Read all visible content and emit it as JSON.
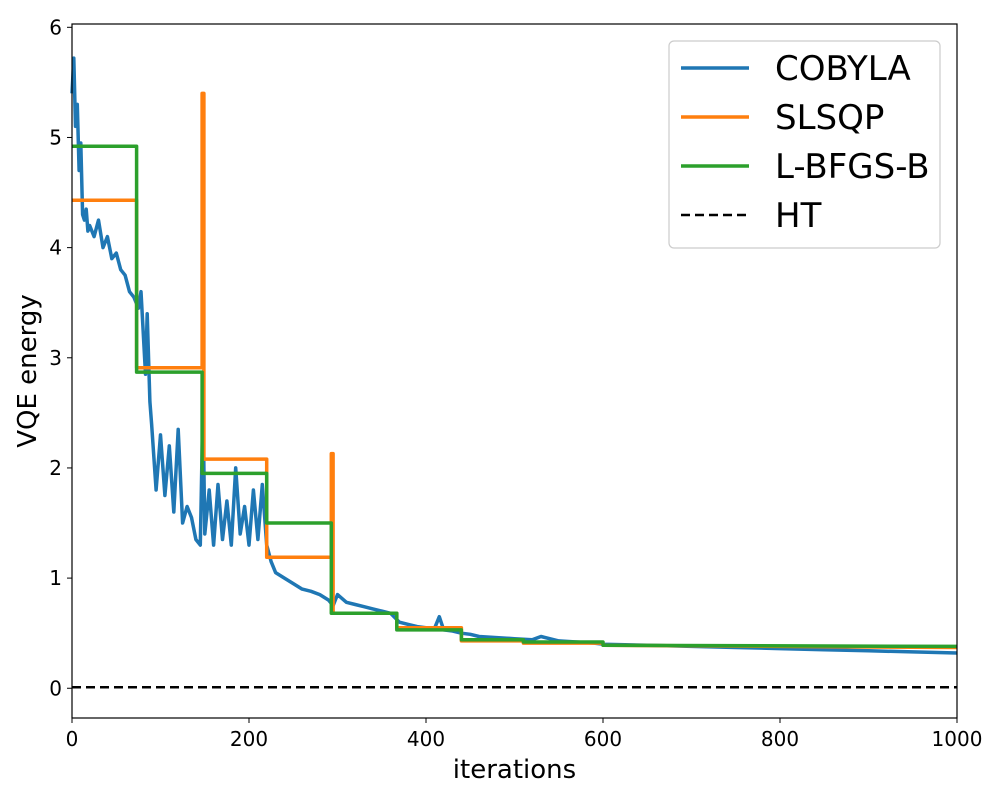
{
  "chart_data": {
    "type": "line",
    "title": "",
    "xlabel": "iterations",
    "ylabel": "VQE energy",
    "xlim": [
      0,
      1000
    ],
    "ylim": [
      -0.27,
      6.03
    ],
    "xticks": [
      0,
      200,
      400,
      600,
      800,
      1000
    ],
    "yticks": [
      0,
      1,
      2,
      3,
      4,
      5,
      6
    ],
    "grid": false,
    "legend_position": "top-right",
    "series": [
      {
        "name": "COBYLA",
        "color": "#1f77b4",
        "style": "solid",
        "x": [
          0,
          2,
          4,
          6,
          8,
          10,
          12,
          14,
          16,
          18,
          20,
          25,
          30,
          35,
          40,
          45,
          50,
          55,
          60,
          65,
          70,
          75,
          78,
          80,
          83,
          85,
          88,
          90,
          95,
          100,
          105,
          110,
          115,
          120,
          125,
          130,
          135,
          140,
          145,
          148,
          150,
          155,
          160,
          165,
          170,
          175,
          180,
          185,
          190,
          195,
          200,
          205,
          210,
          215,
          220,
          225,
          230,
          240,
          250,
          260,
          270,
          280,
          290,
          295,
          300,
          310,
          320,
          330,
          340,
          350,
          360,
          370,
          380,
          390,
          400,
          410,
          415,
          420,
          430,
          440,
          450,
          460,
          480,
          500,
          520,
          530,
          550,
          570,
          590,
          600,
          650,
          700,
          750,
          800,
          850,
          900,
          950,
          1000
        ],
        "y": [
          5.4,
          5.72,
          5.1,
          5.3,
          4.7,
          4.95,
          4.3,
          4.25,
          4.35,
          4.15,
          4.2,
          4.1,
          4.25,
          4.0,
          4.1,
          3.9,
          3.95,
          3.8,
          3.75,
          3.6,
          3.55,
          3.45,
          3.6,
          3.3,
          2.85,
          3.4,
          2.6,
          2.4,
          1.8,
          2.3,
          1.75,
          2.2,
          1.6,
          2.35,
          1.5,
          1.65,
          1.55,
          1.35,
          1.3,
          2.6,
          1.4,
          1.8,
          1.3,
          1.85,
          1.35,
          1.7,
          1.3,
          2.0,
          1.4,
          1.65,
          1.3,
          1.8,
          1.35,
          1.85,
          1.3,
          1.15,
          1.05,
          1.0,
          0.95,
          0.9,
          0.88,
          0.85,
          0.8,
          0.75,
          0.85,
          0.78,
          0.76,
          0.74,
          0.72,
          0.7,
          0.68,
          0.6,
          0.58,
          0.56,
          0.55,
          0.55,
          0.65,
          0.53,
          0.52,
          0.5,
          0.49,
          0.47,
          0.46,
          0.45,
          0.44,
          0.47,
          0.43,
          0.42,
          0.41,
          0.4,
          0.39,
          0.38,
          0.37,
          0.36,
          0.35,
          0.34,
          0.33,
          0.32
        ]
      },
      {
        "name": "SLSQP",
        "color": "#ff7f0e",
        "style": "solid",
        "x": [
          0,
          73,
          73,
          147,
          147,
          149,
          149,
          220,
          220,
          293,
          293,
          295,
          295,
          367,
          367,
          440,
          440,
          510,
          510,
          600,
          600,
          1000
        ],
        "y": [
          4.43,
          4.43,
          2.91,
          2.91,
          5.4,
          5.4,
          2.08,
          2.08,
          1.19,
          1.19,
          2.13,
          2.13,
          0.68,
          0.68,
          0.55,
          0.55,
          0.43,
          0.43,
          0.41,
          0.41,
          0.39,
          0.37
        ]
      },
      {
        "name": "L-BFGS-B",
        "color": "#2ca02c",
        "style": "solid",
        "x": [
          0,
          73,
          73,
          147,
          147,
          220,
          220,
          293,
          293,
          367,
          367,
          440,
          440,
          510,
          510,
          600,
          600,
          1000
        ],
        "y": [
          4.92,
          4.92,
          2.87,
          2.87,
          1.95,
          1.95,
          1.5,
          1.5,
          0.68,
          0.68,
          0.53,
          0.53,
          0.44,
          0.44,
          0.42,
          0.42,
          0.39,
          0.38
        ]
      },
      {
        "name": "HT",
        "color": "#000000",
        "style": "dashed",
        "x": [
          0,
          1000
        ],
        "y": [
          0.01,
          0.01
        ]
      }
    ]
  }
}
